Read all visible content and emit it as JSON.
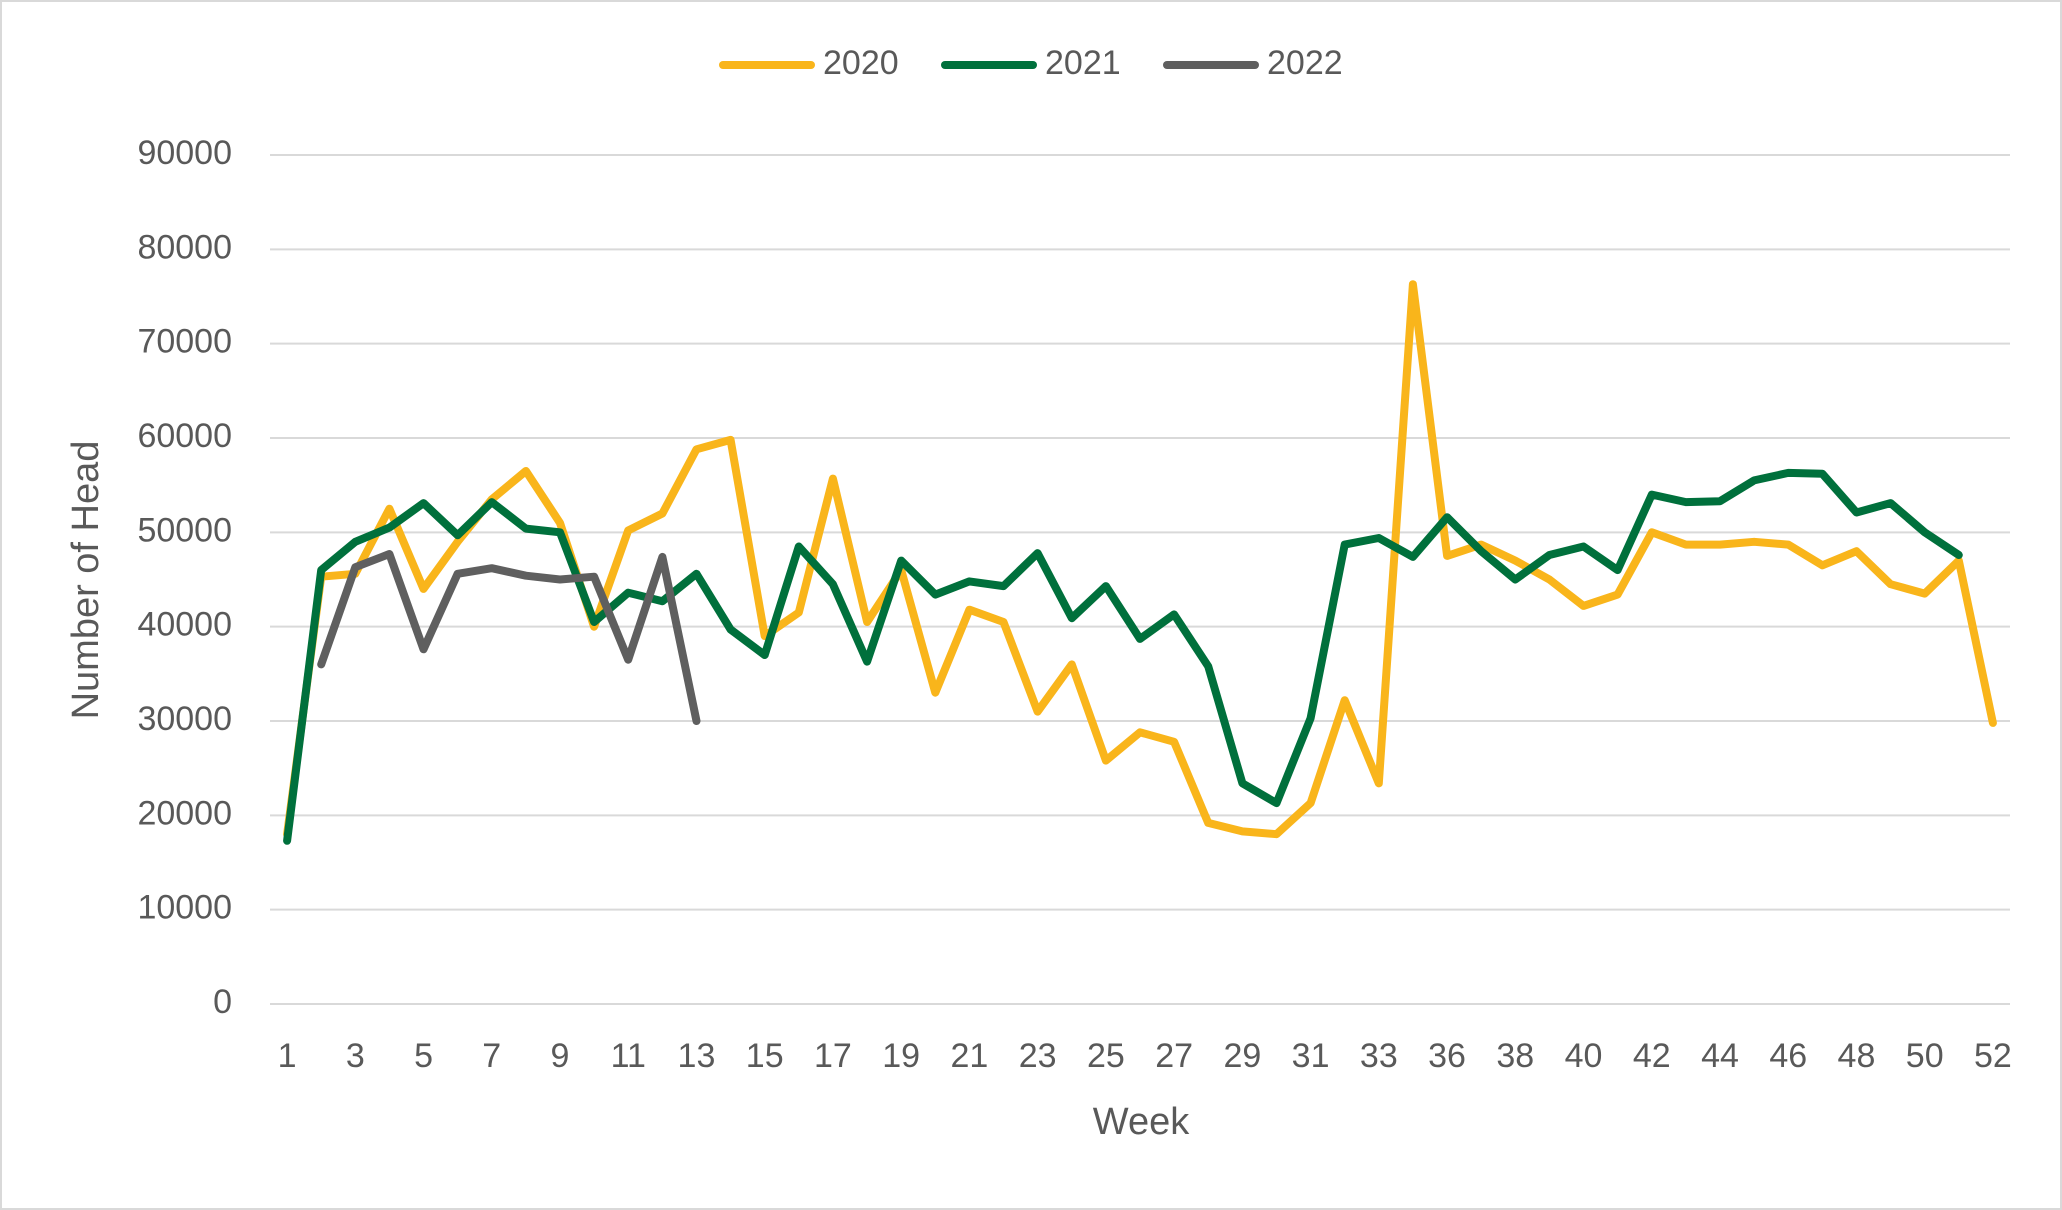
{
  "chart_data": {
    "type": "line",
    "x_label": "Week",
    "y_label": "Number of Head",
    "categories": [
      1,
      null,
      3,
      null,
      5,
      null,
      7,
      null,
      9,
      null,
      11,
      null,
      13,
      null,
      15,
      null,
      17,
      null,
      19,
      null,
      21,
      null,
      23,
      null,
      25,
      null,
      27,
      null,
      29,
      null,
      31,
      null,
      33,
      null,
      36,
      null,
      38,
      null,
      40,
      null,
      42,
      null,
      44,
      null,
      46,
      null,
      48,
      null,
      50,
      null,
      52
    ],
    "series": [
      {
        "name": "2020",
        "color": "#F9B51B",
        "values": [
          18000,
          45300,
          45600,
          52500,
          44000,
          49000,
          53500,
          56500,
          51000,
          40000,
          50200,
          52000,
          58800,
          59800,
          39000,
          41500,
          55700,
          40500,
          46000,
          33000,
          41800,
          40500,
          31000,
          36000,
          25800,
          28800,
          27800,
          19200,
          18300,
          18000,
          21300,
          32200,
          23400,
          76300,
          47500,
          48700,
          47000,
          45000,
          42200,
          43400,
          50000,
          48700,
          48700,
          49000,
          48700,
          46500,
          48000,
          44500,
          43500,
          47000,
          29800
        ]
      },
      {
        "name": "2021",
        "color": "#00703C",
        "values": [
          17300,
          46000,
          49000,
          50500,
          53100,
          49700,
          53200,
          50400,
          50000,
          40500,
          43600,
          42700,
          45600,
          39700,
          37000,
          48500,
          44500,
          36300,
          47000,
          43400,
          44800,
          44300,
          47800,
          40900,
          44300,
          38700,
          41300,
          35800,
          23400,
          21300,
          30300,
          48700,
          49400,
          47400,
          51600,
          48000,
          45000,
          47600,
          48500,
          46000,
          54000,
          53200,
          53300,
          55500,
          56300,
          56200,
          52100,
          53100,
          50000,
          47600,
          null
        ]
      },
      {
        "name": "2022",
        "color": "#5F5F5F",
        "values": [
          null,
          36000,
          46300,
          47700,
          37600,
          45600,
          46200,
          45400,
          45000,
          45300,
          36500,
          47400,
          30000,
          null,
          null,
          null,
          null,
          null,
          null,
          null,
          null,
          null,
          null,
          null,
          null,
          null,
          null,
          null,
          null,
          null,
          null,
          null,
          null,
          null,
          null,
          null,
          null,
          null,
          null,
          null,
          null,
          null,
          null,
          null,
          null,
          null,
          null,
          null,
          null,
          null,
          null
        ]
      }
    ],
    "ylim": [
      0,
      90000
    ],
    "yticks": [
      0,
      10000,
      20000,
      30000,
      40000,
      50000,
      60000,
      70000,
      80000,
      90000
    ],
    "grid": true,
    "legend": "top"
  }
}
